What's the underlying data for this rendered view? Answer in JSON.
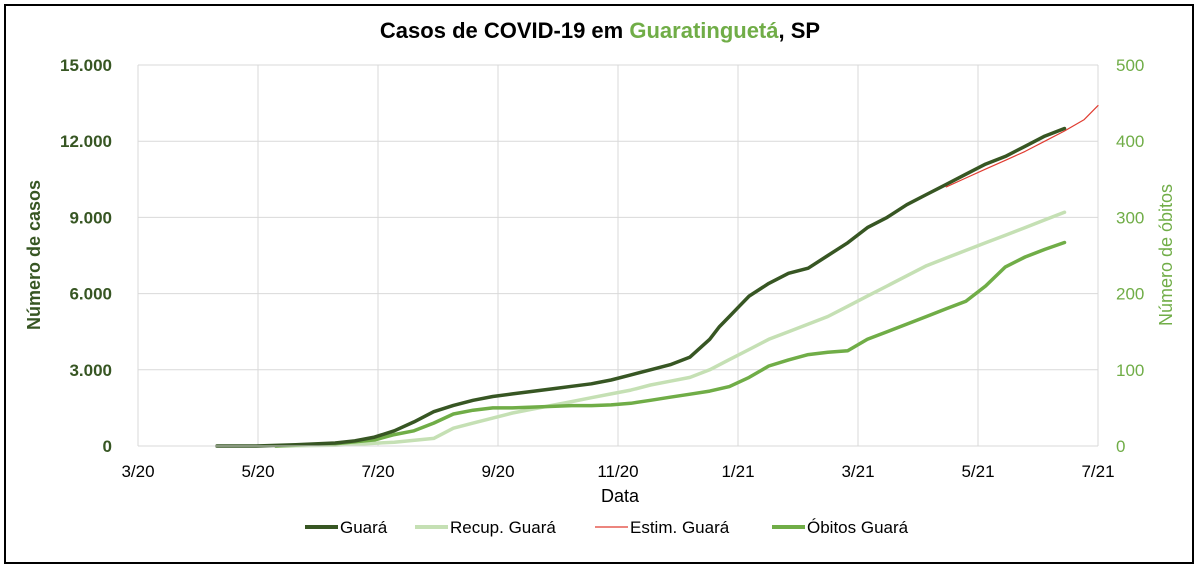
{
  "chart_data": {
    "type": "line",
    "title": {
      "prefix": "Casos de COVID-19 em ",
      "city": "Guaratinguetá",
      "suffix": ", SP"
    },
    "xlabel": "Data",
    "ylabel_left": "Número de casos",
    "ylabel_right": "Número de óbitos",
    "x_ticks": [
      "3/20",
      "5/20",
      "7/20",
      "9/20",
      "11/20",
      "1/21",
      "3/21",
      "5/21",
      "7/21"
    ],
    "xlim_days": [
      0,
      487
    ],
    "ylim_left": [
      0,
      15000
    ],
    "ylim_right": [
      0,
      500
    ],
    "y_ticks_left": [
      "0",
      "3.000",
      "6.000",
      "9.000",
      "12.000",
      "15.000"
    ],
    "y_tick_values_left": [
      0,
      3000,
      6000,
      9000,
      12000,
      15000
    ],
    "y_ticks_right": [
      "0",
      "100",
      "200",
      "300",
      "400",
      "500"
    ],
    "y_tick_values_right": [
      0,
      100,
      200,
      300,
      400,
      500
    ],
    "colors": {
      "guara": "#375623",
      "recup": "#c5e0b4",
      "estim": "#e03c31",
      "obitos": "#70ad47",
      "grid": "#d9d9d9",
      "title_city": "#70ad47"
    },
    "series": [
      {
        "name": "Guará",
        "axis": "left",
        "x": [
          40,
          60,
          80,
          100,
          110,
          120,
          130,
          140,
          150,
          160,
          170,
          180,
          190,
          200,
          210,
          220,
          230,
          240,
          250,
          260,
          270,
          280,
          290,
          295,
          300,
          305,
          310,
          320,
          330,
          340,
          350,
          360,
          370,
          380,
          390,
          400,
          410,
          420,
          430,
          440,
          450,
          460,
          470
        ],
        "values": [
          0,
          0,
          50,
          120,
          200,
          350,
          600,
          950,
          1350,
          1600,
          1800,
          1950,
          2050,
          2150,
          2250,
          2350,
          2450,
          2600,
          2800,
          3000,
          3200,
          3500,
          4200,
          4700,
          5100,
          5500,
          5900,
          6400,
          6800,
          7000,
          7500,
          8000,
          8600,
          9000,
          9500,
          9900,
          10300,
          10700,
          11100,
          11400,
          11800,
          12200,
          12500
        ]
      },
      {
        "name": "Recup. Guará",
        "axis": "left",
        "x": [
          70,
          100,
          130,
          150,
          160,
          170,
          180,
          190,
          200,
          210,
          220,
          230,
          240,
          250,
          260,
          270,
          280,
          290,
          300,
          310,
          320,
          330,
          340,
          350,
          360,
          370,
          380,
          390,
          400,
          410,
          420,
          430,
          440,
          450,
          460,
          470
        ],
        "values": [
          0,
          30,
          150,
          300,
          700,
          900,
          1100,
          1300,
          1450,
          1600,
          1750,
          1900,
          2050,
          2200,
          2400,
          2550,
          2700,
          3000,
          3400,
          3800,
          4200,
          4500,
          4800,
          5100,
          5500,
          5900,
          6300,
          6700,
          7100,
          7400,
          7700,
          8000,
          8300,
          8600,
          8900,
          9200
        ]
      },
      {
        "name": "Estim. Guará",
        "axis": "left",
        "x": [
          410,
          420,
          430,
          440,
          450,
          460,
          470,
          480,
          487
        ],
        "values": [
          10200,
          10550,
          10900,
          11250,
          11600,
          12000,
          12400,
          12850,
          13400
        ]
      },
      {
        "name": "Óbitos Guará",
        "axis": "right",
        "x": [
          70,
          100,
          120,
          130,
          140,
          150,
          160,
          170,
          180,
          190,
          200,
          210,
          220,
          230,
          240,
          250,
          260,
          270,
          280,
          290,
          300,
          310,
          320,
          330,
          340,
          350,
          360,
          370,
          380,
          390,
          400,
          410,
          420,
          430,
          440,
          450,
          460,
          470
        ],
        "values": [
          0,
          3,
          8,
          15,
          20,
          30,
          42,
          47,
          50,
          50,
          51,
          52,
          53,
          53,
          54,
          56,
          60,
          64,
          68,
          72,
          78,
          90,
          105,
          113,
          120,
          123,
          125,
          140,
          150,
          160,
          170,
          180,
          190,
          210,
          235,
          248,
          258,
          267
        ]
      }
    ],
    "legend": [
      "Guará",
      "Recup. Guará",
      "Estim. Guará",
      "Óbitos Guará"
    ]
  }
}
